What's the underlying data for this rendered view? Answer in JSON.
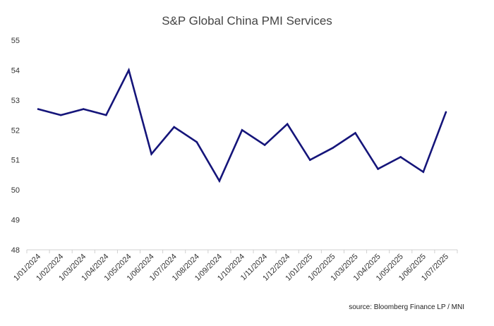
{
  "title": "S&P Global China PMI Services",
  "source": "source: Bloomberg Finance LP / MNI",
  "chart_data": {
    "type": "line",
    "title": "S&P Global China PMI Services",
    "xlabel": "",
    "ylabel": "",
    "ylim": [
      48,
      55
    ],
    "yticks": [
      48,
      49,
      50,
      51,
      52,
      53,
      54,
      55
    ],
    "grid": false,
    "categories": [
      "1/01/2024",
      "1/02/2024",
      "1/03/2024",
      "1/04/2024",
      "1/05/2024",
      "1/06/2024",
      "1/07/2024",
      "1/08/2024",
      "1/09/2024",
      "1/10/2024",
      "1/11/2024",
      "1/12/2024",
      "1/01/2025",
      "1/02/2025",
      "1/03/2025",
      "1/04/2025",
      "1/05/2025",
      "1/06/2025",
      "1/07/2025"
    ],
    "series": [
      {
        "values": [
          52.7,
          52.5,
          52.7,
          52.5,
          54.0,
          51.2,
          52.1,
          51.6,
          50.3,
          52.0,
          51.5,
          52.2,
          51.0,
          51.4,
          51.9,
          50.7,
          51.1,
          50.6,
          52.6
        ],
        "color": "#15157a"
      }
    ]
  }
}
